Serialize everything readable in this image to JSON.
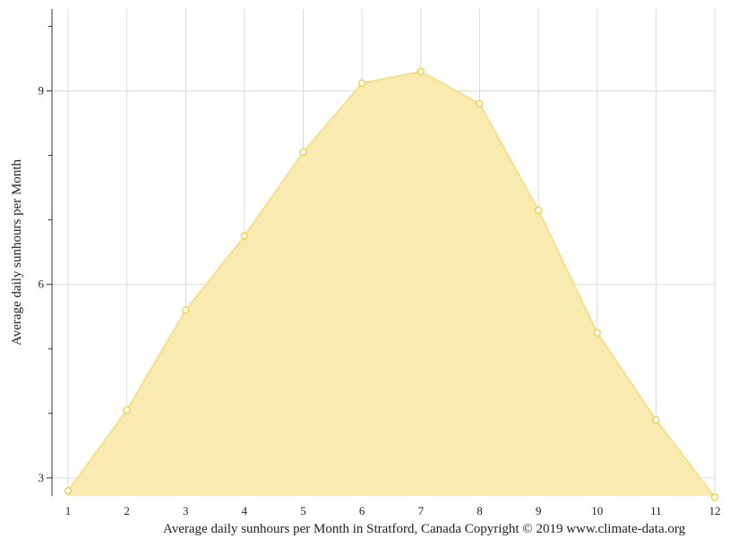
{
  "chart_data": {
    "type": "area",
    "x": [
      1,
      2,
      3,
      4,
      5,
      6,
      7,
      8,
      9,
      10,
      11,
      12
    ],
    "categories": [
      "1",
      "2",
      "3",
      "4",
      "5",
      "6",
      "7",
      "8",
      "9",
      "10",
      "11",
      "12"
    ],
    "series": [
      {
        "values": [
          2.8,
          4.05,
          5.6,
          6.75,
          8.05,
          9.12,
          9.3,
          8.8,
          7.15,
          5.25,
          3.9,
          2.7
        ]
      }
    ],
    "ylabel": "Average daily sunhours per Month",
    "xlabel": "",
    "caption": "Average daily sunhours per Month in Stratford, Canada Copyright © 2019 www.climate-data.org",
    "ylim": [
      2.72,
      10.27
    ],
    "yticks": [
      "3",
      "6",
      "9"
    ],
    "grid": true,
    "colors": {
      "fill": "#f9eaab",
      "line": "#f6df8a",
      "marker": "#f0c830",
      "grid": "#d9d9d9",
      "axis": "#333333"
    }
  }
}
